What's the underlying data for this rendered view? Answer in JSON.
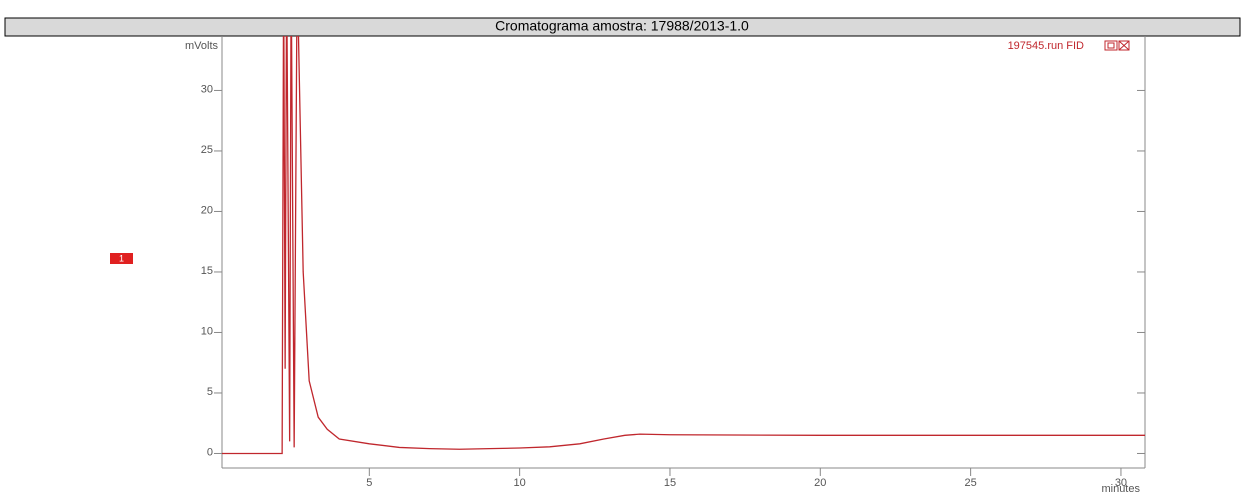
{
  "chart_data": {
    "type": "line",
    "title": "Cromatograma amostra: 17988/2013-1.0",
    "y_label": "mVolts",
    "x_label": "minutes",
    "annotation": "1",
    "x": [
      0.1,
      2.1,
      2.15,
      2.2,
      2.25,
      2.35,
      2.4,
      2.5,
      2.6,
      2.8,
      3.0,
      3.3,
      3.6,
      4,
      5,
      6,
      7,
      8,
      9,
      10,
      11,
      12,
      12.8,
      13.5,
      14,
      15,
      20,
      25,
      30.8
    ],
    "series": [
      {
        "name": "197545.run FID",
        "color": "#c0272d",
        "values": [
          0,
          0,
          40,
          7,
          40,
          1,
          40,
          0.5,
          40,
          15,
          6,
          3,
          2,
          1.2,
          0.8,
          0.5,
          0.4,
          0.35,
          0.4,
          0.45,
          0.55,
          0.8,
          1.2,
          1.5,
          1.6,
          1.55,
          1.5,
          1.5,
          1.5
        ]
      }
    ],
    "xlim": [
      0.1,
      30.8
    ],
    "ylim": [
      -1.2,
      34.5
    ],
    "xticks": [
      5,
      10,
      15,
      20,
      25,
      30
    ],
    "yticks": [
      0,
      5,
      10,
      15,
      20,
      25,
      30
    ]
  }
}
